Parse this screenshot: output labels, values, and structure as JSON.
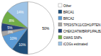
{
  "chart_data": {
    "type": "pie",
    "categories": [
      "Other",
      "BRCA1",
      "BRCA2",
      "TP53/STK11/CDH1/PTEN",
      "CHEK2/ATM/BRIP1/PALB2",
      "GWAS SNPs",
      "iCOGs estimated"
    ],
    "values": [
      50,
      10,
      10,
      3,
      5,
      8,
      14
    ],
    "value_labels": [
      "50%",
      "10%",
      "10%",
      "3%",
      "5%",
      "8%",
      "14%"
    ],
    "colors": [
      "#ffffff",
      "#1f4e79",
      "#5b9bd5",
      "#a5a5a5",
      "#264478",
      "#70ad47",
      "#9dc3e6"
    ],
    "data_labels": true,
    "legend": "right"
  }
}
